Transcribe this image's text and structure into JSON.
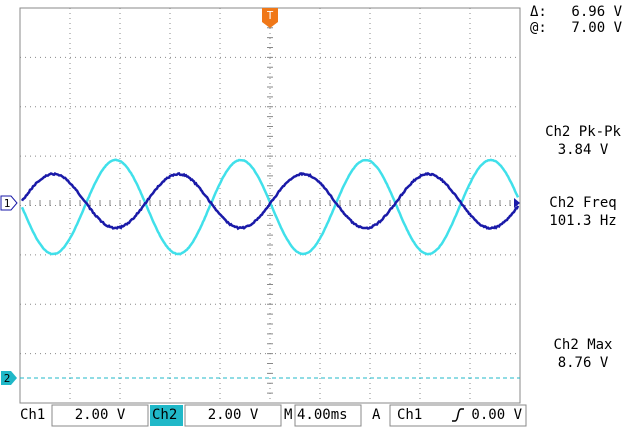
{
  "cursor": {
    "delta_label": "Δ:",
    "delta": "6.96 V",
    "at_label": "@:",
    "at": "7.00 V"
  },
  "measurements": [
    {
      "label": "Ch2 Pk-Pk",
      "value": "3.84 V"
    },
    {
      "label": "Ch2 Freq",
      "value": "101.3 Hz"
    },
    {
      "label": "Ch2 Max",
      "value": "8.76 V"
    }
  ],
  "markers": {
    "trigger": "T",
    "ch1": "1",
    "ch2": "2"
  },
  "status_bar": {
    "ch1_label": "Ch1",
    "ch1_scale": "2.00 V",
    "ch2_label": "Ch2",
    "ch2_scale": "2.00 V",
    "time_label": "M",
    "time_scale": "4.00ms",
    "trigger_mode": "A",
    "trigger_source": "Ch1",
    "trigger_level": "0.00 V"
  }
}
